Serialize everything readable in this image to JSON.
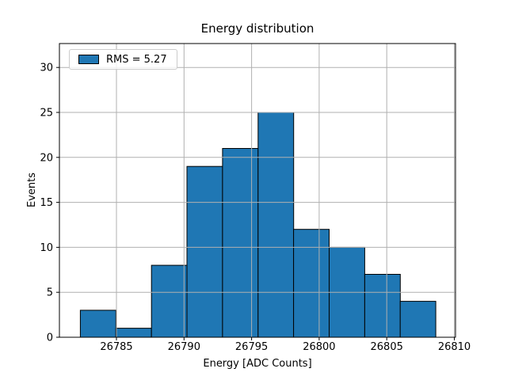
{
  "chart_data": {
    "type": "bar",
    "subtype": "histogram",
    "title": "Energy distribution",
    "xlabel": "Energy [ADC Counts]",
    "ylabel": "Events",
    "legend": {
      "label": "RMS = 5.27",
      "position": "upper-left",
      "patch_color": "#1f77b4"
    },
    "bin_edges": [
      26782.33,
      26784.96,
      26787.59,
      26790.22,
      26792.85,
      26795.48,
      26798.11,
      26800.74,
      26803.37,
      26806.0,
      26808.63
    ],
    "values": [
      3,
      1,
      8,
      19,
      21,
      25,
      12,
      10,
      7,
      4
    ],
    "total_events": 110,
    "xticks": [
      26785,
      26790,
      26795,
      26800,
      26805,
      26810
    ],
    "yticks": [
      0,
      5,
      10,
      15,
      20,
      25,
      30
    ],
    "xlim": [
      26780.78,
      26810.09
    ],
    "ylim": [
      0,
      32.66
    ],
    "grid": true,
    "grid_over_bars": true,
    "colors": {
      "bar_fill": "#1f77b4",
      "bar_edge": "#000000",
      "grid": "#b0b0b0",
      "spine": "#000000",
      "text": "#000000",
      "background": "#ffffff"
    }
  }
}
